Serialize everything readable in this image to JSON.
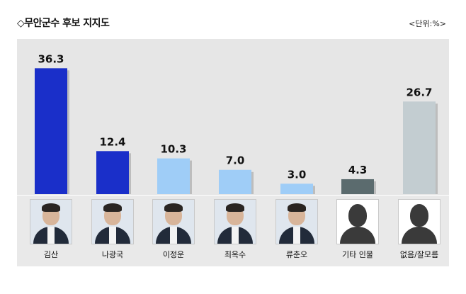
{
  "title": "◇무안군수 후보 지지도",
  "unit": "<단위:%>",
  "chart_data": {
    "type": "bar",
    "categories": [
      "김산",
      "나광국",
      "이정운",
      "최옥수",
      "류춘오",
      "기타 인물",
      "없음/잘모름"
    ],
    "values": [
      36.3,
      12.4,
      10.3,
      7.0,
      3.0,
      4.3,
      26.7
    ],
    "value_labels": [
      "36.3",
      "12.4",
      "10.3",
      "7.0",
      "3.0",
      "4.3",
      "26.7"
    ],
    "colors": [
      "#1a2fc9",
      "#1a2fc9",
      "#9fcdf7",
      "#9fcdf7",
      "#9fcdf7",
      "#5b6b6e",
      "#c3cdd1"
    ],
    "ylim": [
      0,
      38
    ],
    "grid": false
  },
  "candidates": [
    {
      "name": "김산",
      "photo": "portrait"
    },
    {
      "name": "나광국",
      "photo": "portrait"
    },
    {
      "name": "이정운",
      "photo": "portrait"
    },
    {
      "name": "최옥수",
      "photo": "portrait"
    },
    {
      "name": "류춘오",
      "photo": "portrait"
    },
    {
      "name": "기타 인물",
      "photo": "silhouette"
    },
    {
      "name": "없음/잘모름",
      "photo": "silhouette"
    }
  ]
}
